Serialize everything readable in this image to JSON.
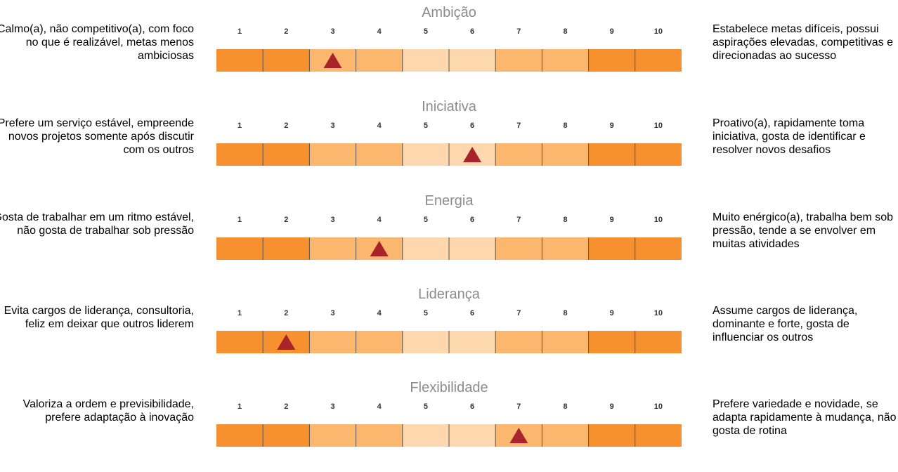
{
  "chart_data": [
    {
      "type": "bar",
      "title": "Ambição",
      "categories": [
        "1",
        "2",
        "3",
        "4",
        "5",
        "6",
        "7",
        "8",
        "9",
        "10"
      ],
      "value": 3,
      "left_label": "Calmo(a), não competitivo(a), com foco no que é realizável, metas menos ambiciosas",
      "right_label": "Estabelece metas difíceis, possui aspirações elevadas, competitivas e direcionadas ao sucesso"
    },
    {
      "type": "bar",
      "title": "Iniciativa",
      "categories": [
        "1",
        "2",
        "3",
        "4",
        "5",
        "6",
        "7",
        "8",
        "9",
        "10"
      ],
      "value": 6,
      "left_label": "Prefere um serviço estável, empreende novos projetos somente após discutir com os outros",
      "right_label": "Proativo(a), rapidamente toma iniciativa, gosta de identificar e resolver novos desafios"
    },
    {
      "type": "bar",
      "title": "Energia",
      "categories": [
        "1",
        "2",
        "3",
        "4",
        "5",
        "6",
        "7",
        "8",
        "9",
        "10"
      ],
      "value": 4,
      "left_label": "Gosta de trabalhar em um ritmo estável, não gosta de trabalhar sob pressão",
      "right_label": "Muito enérgico(a), trabalha bem sob pressão, tende a se envolver em muitas atividades"
    },
    {
      "type": "bar",
      "title": "Liderança",
      "categories": [
        "1",
        "2",
        "3",
        "4",
        "5",
        "6",
        "7",
        "8",
        "9",
        "10"
      ],
      "value": 2,
      "left_label": "Evita cargos de liderança, consultoria, feliz em deixar que outros liderem",
      "right_label": "Assume cargos de liderança, dominante e forte, gosta de influenciar os outros"
    },
    {
      "type": "bar",
      "title": "Flexibilidade",
      "categories": [
        "1",
        "2",
        "3",
        "4",
        "5",
        "6",
        "7",
        "8",
        "9",
        "10"
      ],
      "value": 7,
      "left_label": "Valoriza a ordem e previsibilidade, prefere adaptação à inovação",
      "right_label": "Prefere variedade e novidade, se adapta rapidamente à mudança, não gosta de rotina"
    }
  ],
  "colors": {
    "segments": [
      "#f7902f",
      "#f7902f",
      "#fbb76e",
      "#fbb76e",
      "#fdd7ad",
      "#fdd7ad",
      "#fbb76e",
      "#fbb76e",
      "#f7902f",
      "#f7902f"
    ],
    "marker": "#a8232a",
    "divider": "#555555"
  }
}
